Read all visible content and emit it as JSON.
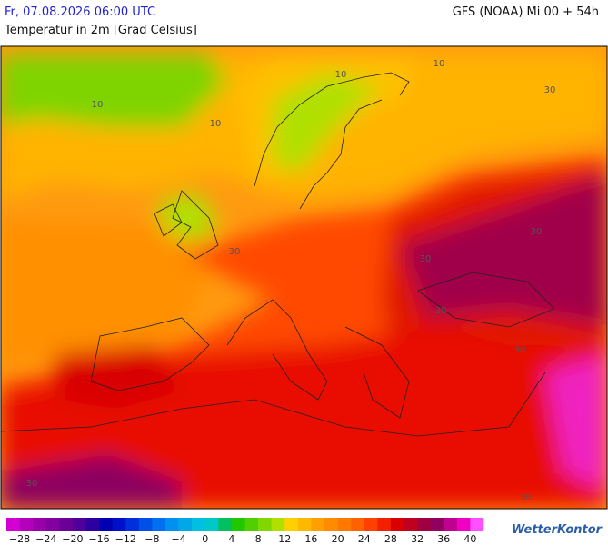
{
  "header": {
    "valid_time": "Fr, 07.08.2026 06:00 UTC",
    "model": "GFS (NOAA) Mi 00 + 54h",
    "parameter": "Temperatur in 2m [Grad Celsius]"
  },
  "map": {
    "contour_labels": [
      "10",
      "10",
      "10",
      "10",
      "30",
      "30",
      "30",
      "30",
      "30",
      "30",
      "30",
      "30"
    ]
  },
  "legend": {
    "tick_labels": [
      "−28",
      "−24",
      "−20",
      "−16",
      "−12",
      "−8",
      "−4",
      "0",
      "4",
      "8",
      "12",
      "16",
      "20",
      "24",
      "28",
      "32",
      "36",
      "40"
    ],
    "colors": [
      "#d300d3",
      "#b400bc",
      "#9a00aa",
      "#8200a0",
      "#6a0098",
      "#50009a",
      "#2c00a0",
      "#0000b0",
      "#0010c8",
      "#0030dc",
      "#0050e8",
      "#0070f0",
      "#0090f0",
      "#00a8e8",
      "#00c0e0",
      "#00c8c8",
      "#00c060",
      "#20c800",
      "#50d000",
      "#80d800",
      "#b0e000",
      "#ffd000",
      "#ffb800",
      "#ffa000",
      "#ff8c00",
      "#ff7800",
      "#ff6000",
      "#ff4000",
      "#f02000",
      "#d80000",
      "#c00020",
      "#a00040",
      "#900060",
      "#c00090",
      "#f000c0",
      "#ff50ff"
    ]
  },
  "footer": {
    "brand": "WetterKontor"
  }
}
